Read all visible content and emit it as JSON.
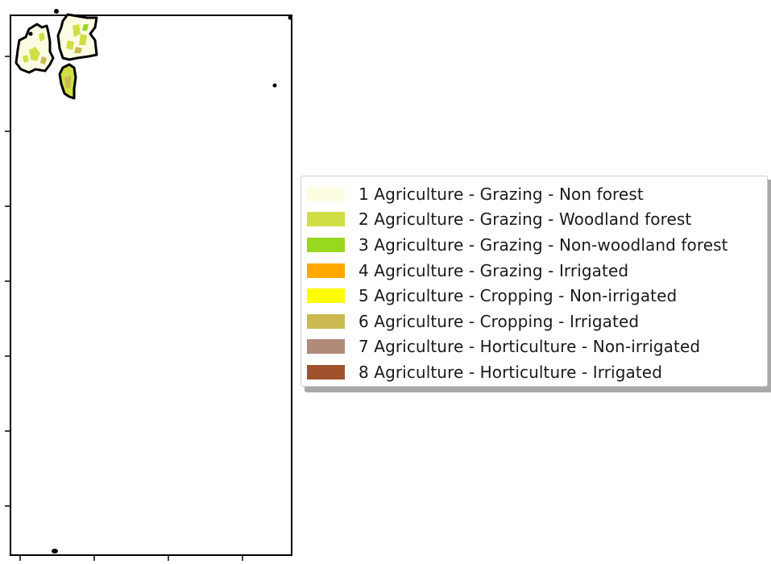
{
  "map": {
    "legend": {
      "placement": "center-right",
      "items": [
        {
          "label": "1 Agriculture - Grazing - Non forest",
          "color": "#fdfde4"
        },
        {
          "label": "2 Agriculture - Grazing - Woodland forest",
          "color": "#d0df45"
        },
        {
          "label": "3 Agriculture - Grazing - Non-woodland forest",
          "color": "#98d81e"
        },
        {
          "label": "4 Agriculture - Grazing - Irrigated",
          "color": "#fea800"
        },
        {
          "label": "5 Agriculture - Cropping - Non-irrigated",
          "color": "#fffd00"
        },
        {
          "label": "6 Agriculture - Cropping - Irrigated",
          "color": "#cbb951"
        },
        {
          "label": "7 Agriculture - Horticulture - Non-irrigated",
          "color": "#b28a79"
        },
        {
          "label": "8 Agriculture - Horticulture - Irrigated",
          "color": "#a0522d"
        }
      ]
    },
    "colors": {
      "boundary": "#000000",
      "frame": "#000000",
      "background": "#ffffff"
    }
  }
}
